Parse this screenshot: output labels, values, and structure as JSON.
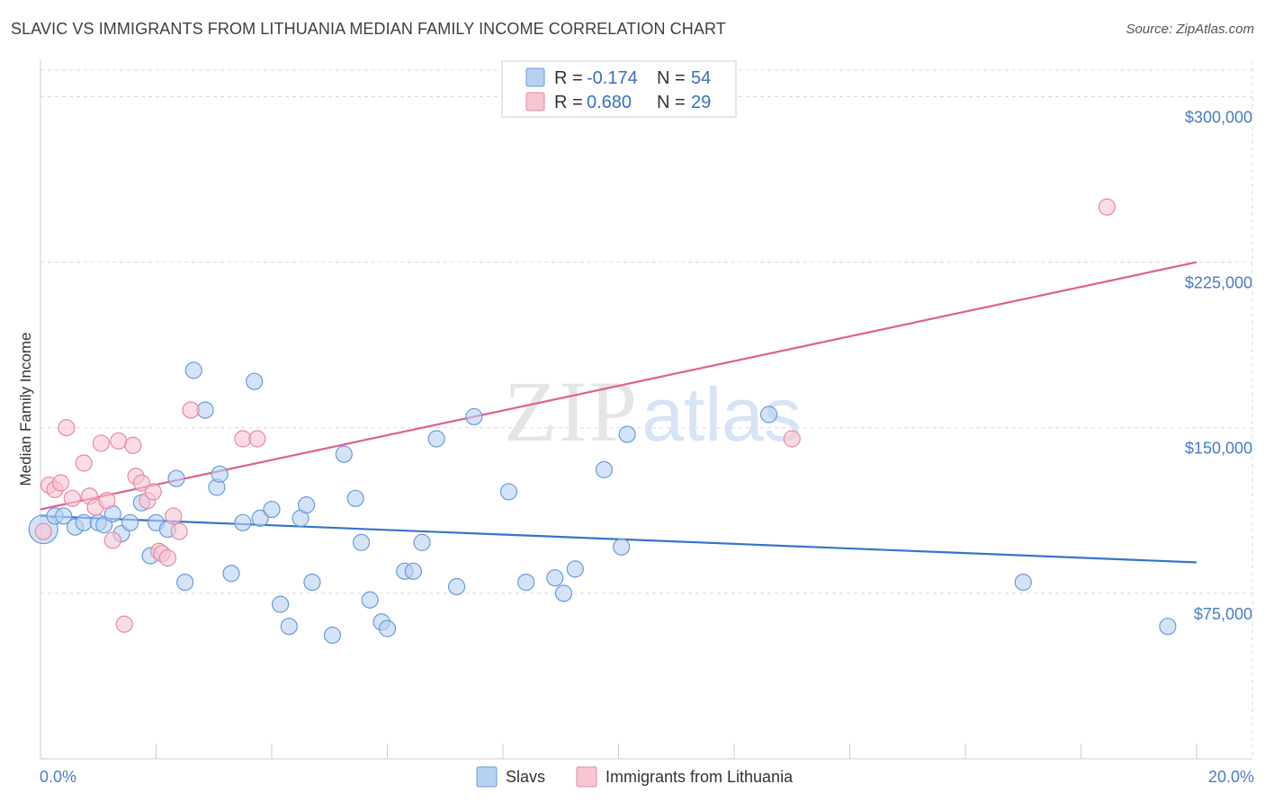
{
  "title": "SLAVIC VS IMMIGRANTS FROM LITHUANIA MEDIAN FAMILY INCOME CORRELATION CHART",
  "source": "Source: ZipAtlas.com",
  "watermark": {
    "zip": "ZIP",
    "atlas": "atlas"
  },
  "colors": {
    "slavs_fill": "#b7d1f2",
    "slavs_stroke": "#6a9bd8",
    "slavs_line": "#3674c9",
    "lith_fill": "#f7c4d2",
    "lith_stroke": "#e68aa5",
    "lith_line": "#e0608c",
    "grid": "#d9d9d9",
    "axis_text": "#4a7cc4"
  },
  "legend": {
    "rows": [
      {
        "r_label": "R =",
        "r_value": "-0.174",
        "n_label": "N =",
        "n_value": "54",
        "series": "slavs"
      },
      {
        "r_label": "R =",
        "r_value": "0.680",
        "n_label": "N =",
        "n_value": "29",
        "series": "lith"
      }
    ]
  },
  "chart_data": {
    "type": "scatter",
    "title": "SLAVIC VS IMMIGRANTS FROM LITHUANIA MEDIAN FAMILY INCOME CORRELATION CHART",
    "xlabel": "",
    "ylabel": "Median Family Income",
    "xlim": [
      0,
      20
    ],
    "ylim": [
      0,
      312000
    ],
    "x_tick_labels": [
      "0.0%",
      "20.0%"
    ],
    "y_ticks": [
      75000,
      150000,
      225000,
      300000
    ],
    "y_tick_labels": [
      "$75,000",
      "$150,000",
      "$225,000",
      "$300,000"
    ],
    "grid": true,
    "legend_position": "top-center",
    "series": [
      {
        "name": "Slavs",
        "color": "#6a9bd8",
        "points": [
          [
            0.05,
            104000
          ],
          [
            0.25,
            110000
          ],
          [
            0.4,
            110000
          ],
          [
            0.6,
            105000
          ],
          [
            0.75,
            107000
          ],
          [
            1.0,
            107000
          ],
          [
            1.1,
            106000
          ],
          [
            1.25,
            111000
          ],
          [
            1.4,
            102000
          ],
          [
            1.55,
            107000
          ],
          [
            1.75,
            116000
          ],
          [
            1.9,
            92000
          ],
          [
            2.0,
            107000
          ],
          [
            2.2,
            104000
          ],
          [
            2.35,
            127000
          ],
          [
            2.5,
            80000
          ],
          [
            2.65,
            176000
          ],
          [
            2.85,
            158000
          ],
          [
            3.05,
            123000
          ],
          [
            3.1,
            129000
          ],
          [
            3.3,
            84000
          ],
          [
            3.5,
            107000
          ],
          [
            3.7,
            171000
          ],
          [
            3.8,
            109000
          ],
          [
            4.0,
            113000
          ],
          [
            4.15,
            70000
          ],
          [
            4.3,
            60000
          ],
          [
            4.5,
            109000
          ],
          [
            4.6,
            115000
          ],
          [
            4.7,
            80000
          ],
          [
            5.05,
            56000
          ],
          [
            5.25,
            138000
          ],
          [
            5.45,
            118000
          ],
          [
            5.55,
            98000
          ],
          [
            5.7,
            72000
          ],
          [
            5.9,
            62000
          ],
          [
            6.0,
            59000
          ],
          [
            6.3,
            85000
          ],
          [
            6.45,
            85000
          ],
          [
            6.6,
            98000
          ],
          [
            6.85,
            145000
          ],
          [
            7.2,
            78000
          ],
          [
            7.5,
            155000
          ],
          [
            8.1,
            121000
          ],
          [
            8.4,
            80000
          ],
          [
            8.9,
            82000
          ],
          [
            9.05,
            75000
          ],
          [
            9.25,
            86000
          ],
          [
            9.75,
            131000
          ],
          [
            10.05,
            96000
          ],
          [
            10.15,
            147000
          ],
          [
            12.6,
            156000
          ],
          [
            17.0,
            80000
          ],
          [
            19.5,
            60000
          ]
        ]
      },
      {
        "name": "Immigrants from Lithuania",
        "color": "#e68aa5",
        "points": [
          [
            0.05,
            103000
          ],
          [
            0.15,
            124000
          ],
          [
            0.25,
            122000
          ],
          [
            0.35,
            125000
          ],
          [
            0.45,
            150000
          ],
          [
            0.55,
            118000
          ],
          [
            0.75,
            134000
          ],
          [
            0.85,
            119000
          ],
          [
            0.95,
            114000
          ],
          [
            1.05,
            143000
          ],
          [
            1.15,
            117000
          ],
          [
            1.25,
            99000
          ],
          [
            1.35,
            144000
          ],
          [
            1.45,
            61000
          ],
          [
            1.6,
            142000
          ],
          [
            1.65,
            128000
          ],
          [
            1.75,
            125000
          ],
          [
            1.85,
            117000
          ],
          [
            1.95,
            121000
          ],
          [
            2.05,
            94000
          ],
          [
            2.1,
            93000
          ],
          [
            2.2,
            91000
          ],
          [
            2.3,
            110000
          ],
          [
            2.4,
            103000
          ],
          [
            2.6,
            158000
          ],
          [
            3.5,
            145000
          ],
          [
            3.75,
            145000
          ],
          [
            13.0,
            145000
          ],
          [
            18.45,
            250000
          ]
        ]
      }
    ],
    "trendlines": [
      {
        "series": "Slavs",
        "x": [
          0,
          20
        ],
        "y": [
          110000,
          89000
        ]
      },
      {
        "series": "Immigrants from Lithuania",
        "x": [
          0,
          20
        ],
        "y": [
          113000,
          225000
        ]
      }
    ]
  },
  "bottom_legend": {
    "items": [
      "Slavs",
      "Immigrants from Lithuania"
    ]
  }
}
